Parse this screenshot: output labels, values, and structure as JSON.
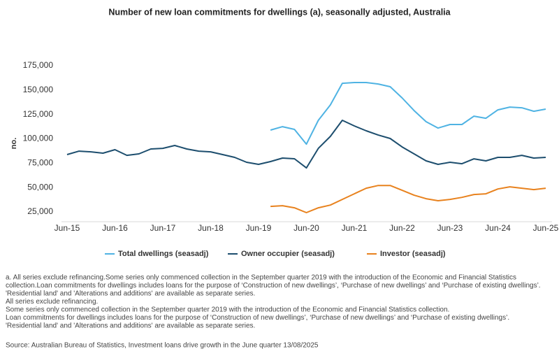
{
  "chart_data": {
    "type": "line",
    "title": "Number of new loan commitments for dwellings (a), seasonally adjusted, Australia",
    "y_label": "no.",
    "categories": [
      "Jun-15",
      null,
      null,
      null,
      "Jun-16",
      null,
      null,
      null,
      "Jun-17",
      null,
      null,
      null,
      "Jun-18",
      null,
      null,
      null,
      "Jun-19",
      null,
      null,
      null,
      "Jun-20",
      null,
      null,
      null,
      "Jun-21",
      null,
      null,
      null,
      "Jun-22",
      null,
      null,
      null,
      "Jun-23",
      null,
      null,
      null,
      "Jun-24",
      null,
      null,
      null,
      "Jun-25"
    ],
    "series": [
      {
        "name": "Total dwellings (seasadj)",
        "color": "#4fb3e3",
        "values": [
          null,
          null,
          null,
          null,
          null,
          null,
          null,
          null,
          null,
          null,
          null,
          null,
          null,
          null,
          null,
          null,
          null,
          109000,
          112500,
          109700,
          94600,
          119000,
          134800,
          157000,
          157800,
          157800,
          156300,
          153500,
          142000,
          129000,
          117600,
          111100,
          114700,
          114700,
          123300,
          121100,
          129700,
          132600,
          131900,
          128300,
          130500
        ]
      },
      {
        "name": "Owner occupier (seasadj)",
        "color": "#1d4e6e",
        "values": [
          83900,
          87400,
          86700,
          85300,
          88900,
          83100,
          84600,
          89600,
          90300,
          93200,
          89600,
          87400,
          86700,
          83900,
          81000,
          76000,
          73800,
          76700,
          80300,
          79600,
          70200,
          90300,
          102500,
          119000,
          113300,
          108300,
          103900,
          100400,
          91700,
          84600,
          77400,
          73800,
          76000,
          74500,
          79500,
          77400,
          81000,
          81000,
          83100,
          80300,
          81000
        ]
      },
      {
        "name": "Investor (seasadj)",
        "color": "#e8821e",
        "values": [
          null,
          null,
          null,
          null,
          null,
          null,
          null,
          null,
          null,
          null,
          null,
          null,
          null,
          null,
          null,
          null,
          null,
          30700,
          31400,
          29300,
          24300,
          29300,
          32100,
          37900,
          43600,
          49400,
          52200,
          52200,
          47200,
          42200,
          38600,
          36500,
          37900,
          40000,
          42900,
          43600,
          48600,
          50800,
          49400,
          47900,
          49400
        ]
      }
    ],
    "ylim": [
      15000,
      175000
    ],
    "yticks": [
      {
        "value": 25000,
        "label": "25,000"
      },
      {
        "value": 50000,
        "label": "50,000"
      },
      {
        "value": 75000,
        "label": "75,000"
      },
      {
        "value": 100000,
        "label": "100,000"
      },
      {
        "value": 125000,
        "label": "125,000"
      },
      {
        "value": 150000,
        "label": "150,000"
      },
      {
        "value": 175000,
        "label": "175,000"
      }
    ],
    "grid": false,
    "notes": [
      "a. All series exclude refinancing.Some series only commenced collection in the September quarter 2019 with the introduction of the Economic and Financial Statistics",
      "collection.Loan commitments for dwellings includes loans for the purpose of ‘Construction of new dwellings’, ‘Purchase of new dwellings’ and ‘Purchase of existing dwellings’.",
      "'Residential land' and 'Alterations and additions' are available as separate series.",
      "All series exclude refinancing.",
      "Some series only commenced collection in the September quarter 2019 with the introduction of the Economic and Financial Statistics collection.",
      "Loan commitments for dwellings includes loans for the purpose of ‘Construction of new dwellings’, ‘Purchase of new dwellings’ and ‘Purchase of existing dwellings’.",
      "'Residential land' and 'Alterations and additions' are available as separate series."
    ],
    "source": "Source: Australian Bureau of Statistics, Investment loans drive growth in the June quarter 13/08/2025"
  }
}
